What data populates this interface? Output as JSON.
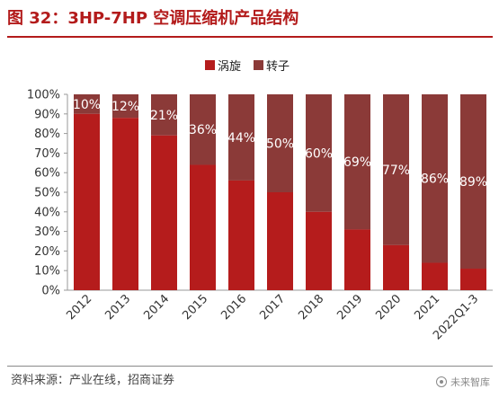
{
  "figure": {
    "title": "图 32：3HP-7HP 空调压缩机产品结构",
    "source": "资料来源：产业在线，招商证券",
    "watermark": "未来智库",
    "watermark_icon": "watermark-logo-icon"
  },
  "chart_data": {
    "type": "bar",
    "stacked": true,
    "categories": [
      "2012",
      "2013",
      "2014",
      "2015",
      "2016",
      "2017",
      "2018",
      "2019",
      "2020",
      "2021",
      "2022Q1-3"
    ],
    "series": [
      {
        "name": "涡旋",
        "color": "#b51c1c",
        "values": [
          90,
          88,
          79,
          64,
          56,
          50,
          40,
          31,
          23,
          14,
          11
        ]
      },
      {
        "name": "转子",
        "color": "#8b3a38",
        "values": [
          10,
          12,
          21,
          36,
          44,
          50,
          60,
          69,
          77,
          86,
          89
        ]
      }
    ],
    "data_labels": [
      "10%",
      "12%",
      "21%",
      "36%",
      "44%",
      "50%",
      "60%",
      "69%",
      "77%",
      "86%",
      "89%"
    ],
    "yticks": [
      "0%",
      "10%",
      "20%",
      "30%",
      "40%",
      "50%",
      "60%",
      "70%",
      "80%",
      "90%",
      "100%"
    ],
    "ylim": [
      0,
      100
    ],
    "xlabel": "",
    "ylabel": "",
    "legend": "top-center",
    "grid": false
  }
}
